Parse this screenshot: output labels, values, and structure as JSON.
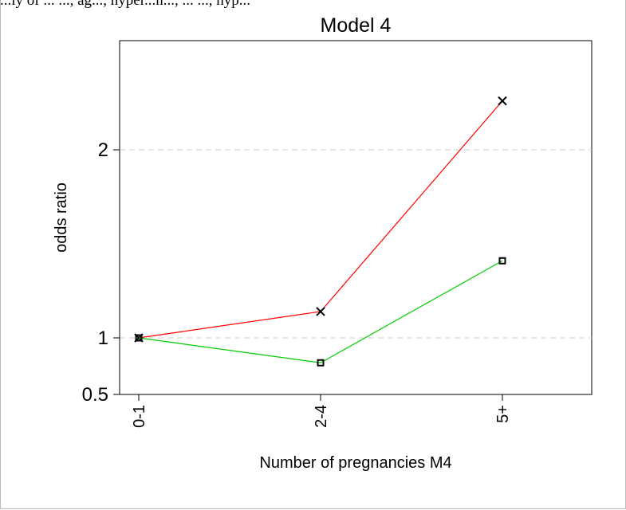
{
  "top_text": "...ly of ... ..., ag..., hyper...n..., ... ..., hyp...",
  "chart_data": {
    "type": "line",
    "title": "Model 4",
    "xlabel": "Number of pregnancies M4",
    "ylabel": "odds ratio",
    "categories": [
      "0-1",
      "2-4",
      "5+"
    ],
    "y_ticks": [
      {
        "value": 0.5,
        "label": "0.5"
      },
      {
        "value": 1,
        "label": "1"
      },
      {
        "value": 2,
        "label": "2"
      }
    ],
    "ylim": [
      0.5,
      2.6
    ],
    "reference_lines": [
      1,
      2
    ],
    "grid": false,
    "series": [
      {
        "values": [
          1.0,
          1.14,
          2.26
        ],
        "color": "#ff0000",
        "marker": "x"
      },
      {
        "values": [
          1.0,
          0.78,
          1.41
        ],
        "color": "#00cc00",
        "marker": "square"
      }
    ]
  }
}
